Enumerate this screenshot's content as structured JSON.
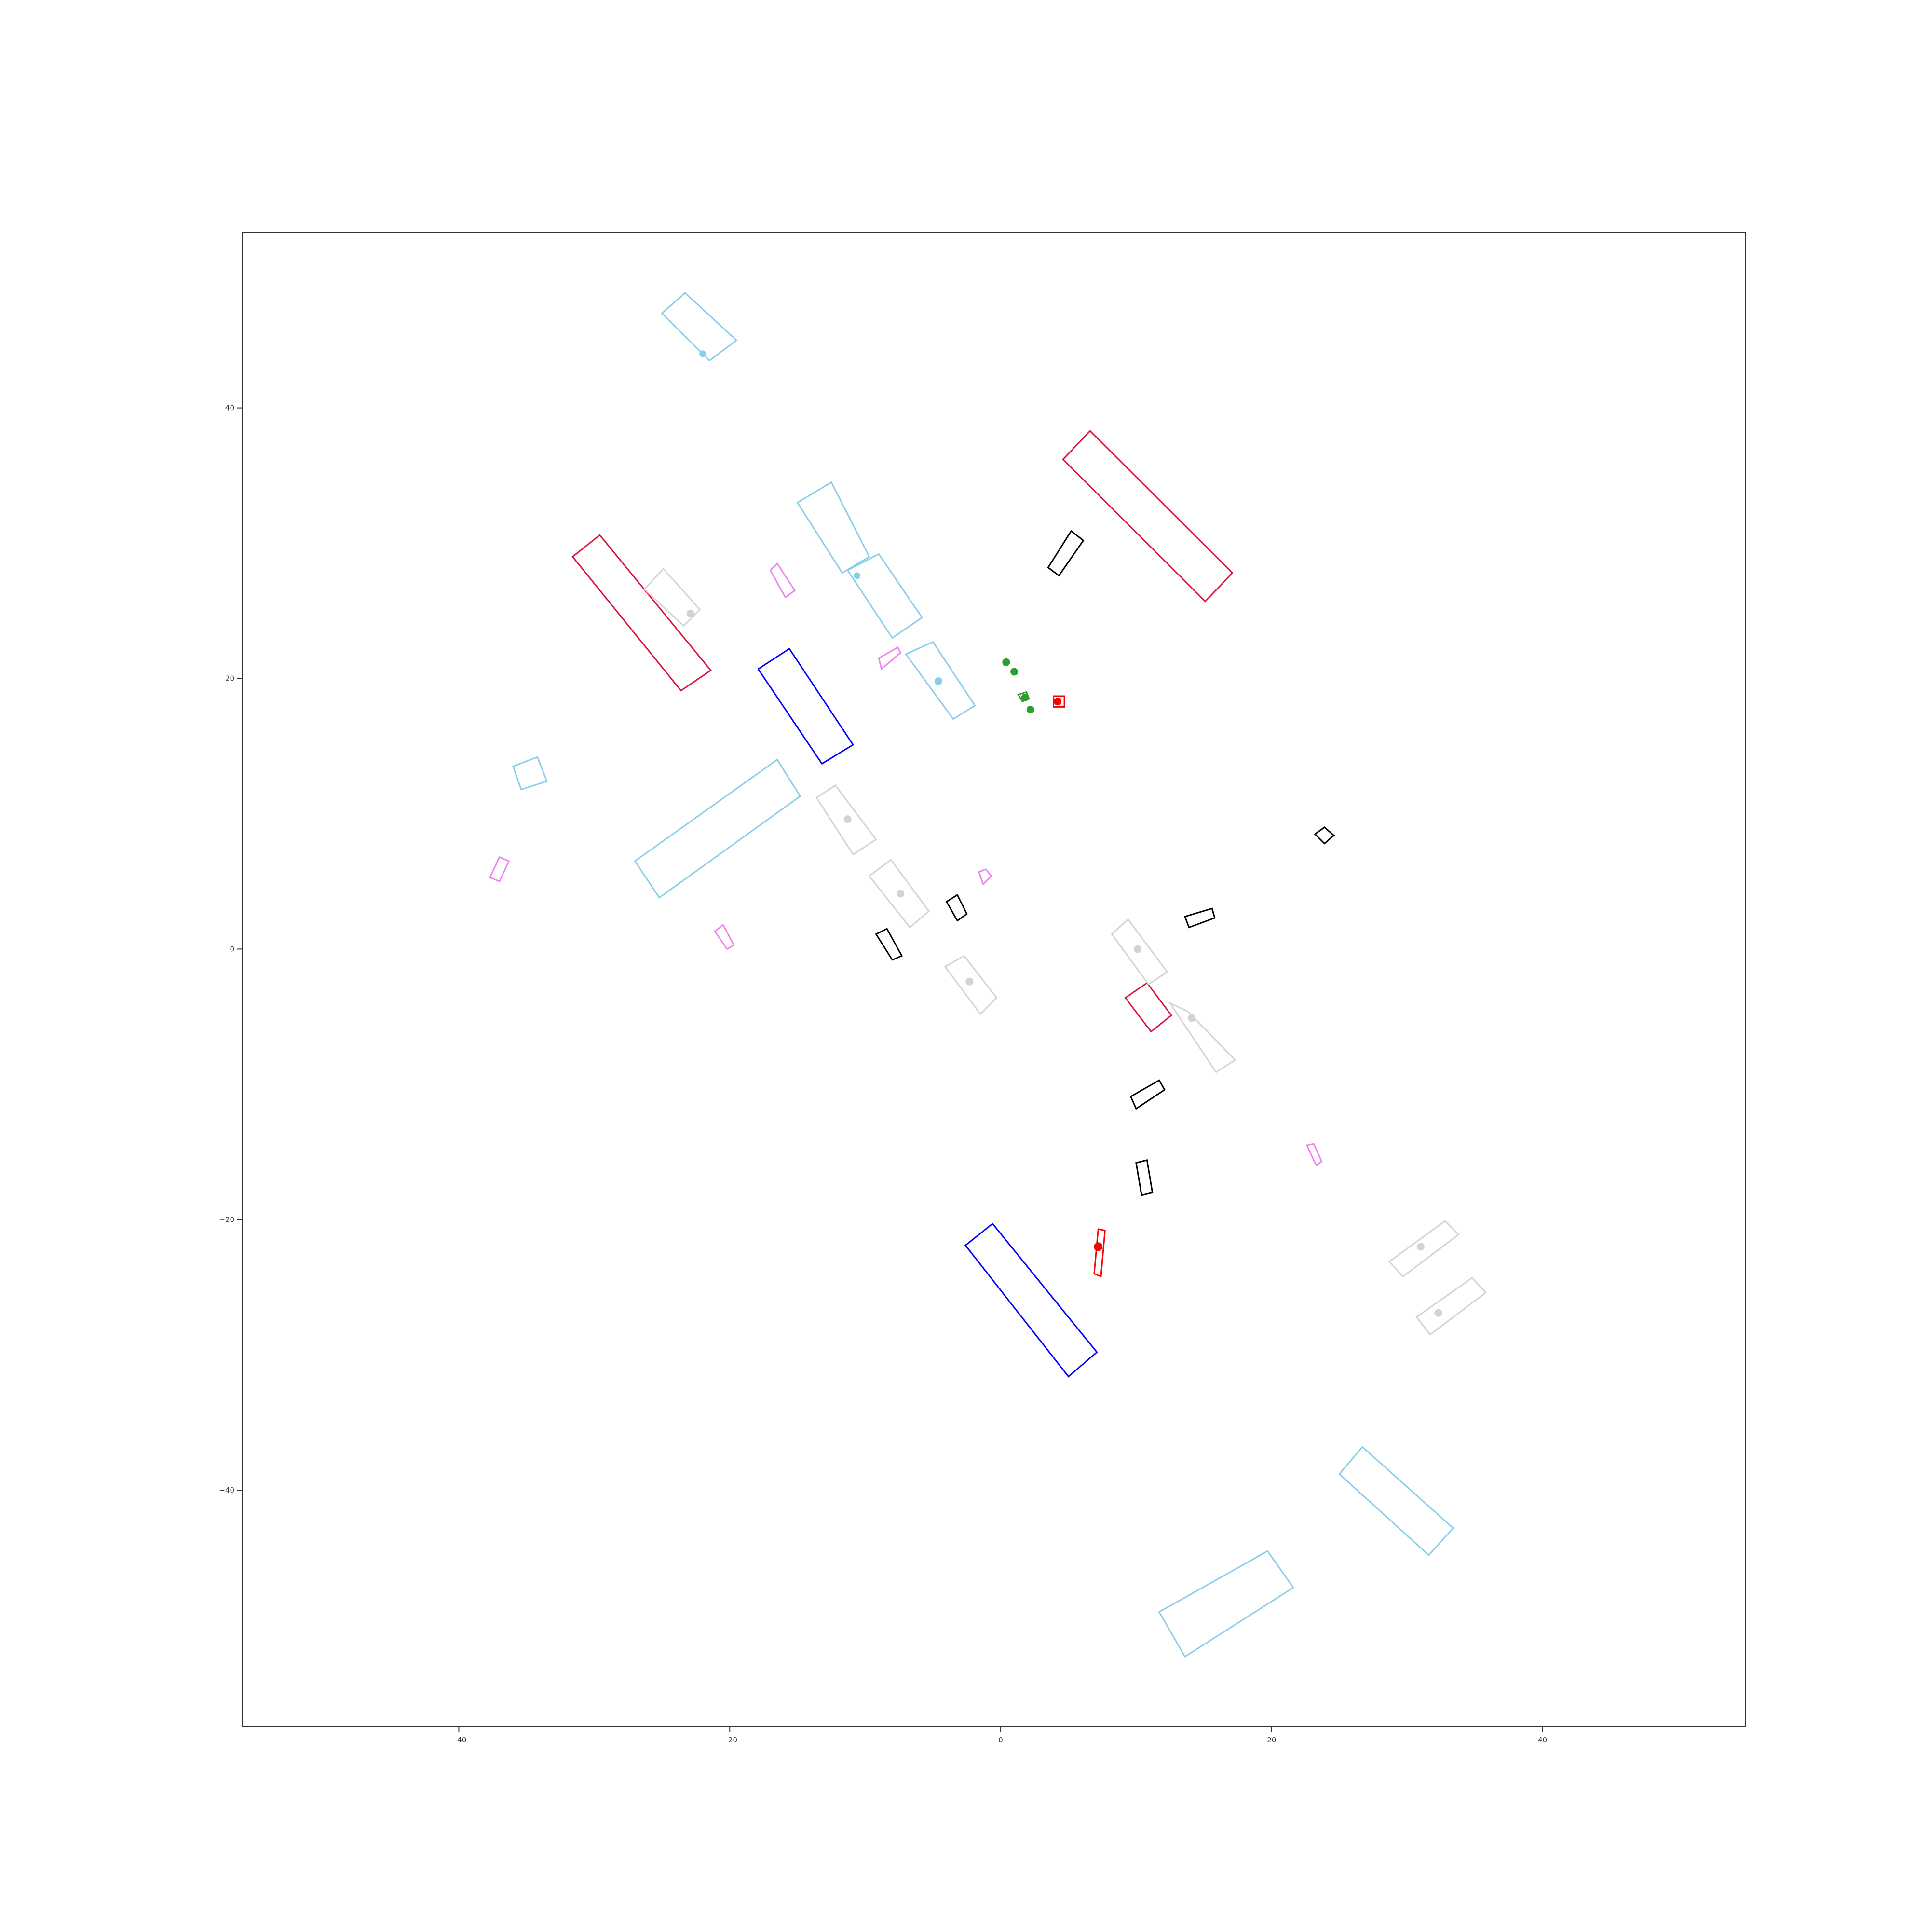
{
  "chart_data": {
    "type": "scatter",
    "title": "",
    "xlabel": "",
    "ylabel": "",
    "xlim": [
      -56,
      55
    ],
    "ylim": [
      -57.5,
      53
    ],
    "grid": false,
    "x_ticks": [
      -40,
      -20,
      0,
      20,
      40
    ],
    "y_ticks": [
      -40,
      -20,
      0,
      20,
      40
    ],
    "x_tick_labels": [
      "−40",
      "−20",
      "0",
      "20",
      "40"
    ],
    "y_tick_labels": [
      "−40",
      "−20",
      "0",
      "20",
      "40"
    ],
    "colors": {
      "skyblue": "#87ceeb",
      "crimson": "#dc143c",
      "blue": "#0000ff",
      "black": "#000000",
      "lightgray": "#d3d3d3",
      "violet": "#ee82ee",
      "green": "#2ca02c",
      "red": "#ff0000"
    },
    "boxes": [
      {
        "color": "skyblue",
        "corners": [
          [
            -25.0,
            47.0
          ],
          [
            -21.5,
            43.5
          ],
          [
            -19.5,
            45.0
          ],
          [
            -23.3,
            48.5
          ]
        ]
      },
      {
        "color": "skyblue",
        "corners": [
          [
            -15.0,
            33.0
          ],
          [
            -12.5,
            34.5
          ],
          [
            -9.7,
            29.0
          ],
          [
            -11.7,
            27.8
          ]
        ]
      },
      {
        "color": "skyblue",
        "corners": [
          [
            -11.3,
            28.0
          ],
          [
            -9.0,
            29.2
          ],
          [
            -5.8,
            24.5
          ],
          [
            -8.0,
            23.0
          ]
        ]
      },
      {
        "color": "skyblue",
        "corners": [
          [
            -7.0,
            21.8
          ],
          [
            -5.0,
            22.7
          ],
          [
            -1.9,
            18.0
          ],
          [
            -3.5,
            17.0
          ]
        ]
      },
      {
        "color": "skyblue",
        "corners": [
          [
            -36.0,
            13.5
          ],
          [
            -34.2,
            14.2
          ],
          [
            -33.5,
            12.4
          ],
          [
            -35.4,
            11.8
          ]
        ]
      },
      {
        "color": "skyblue",
        "corners": [
          [
            -27.0,
            6.5
          ],
          [
            -25.2,
            3.8
          ],
          [
            -14.8,
            11.3
          ],
          [
            -16.5,
            14.0
          ]
        ]
      },
      {
        "color": "skyblue",
        "corners": [
          [
            25.0,
            -38.8
          ],
          [
            26.7,
            -36.8
          ],
          [
            33.4,
            -42.8
          ],
          [
            31.6,
            -44.8
          ]
        ]
      },
      {
        "color": "skyblue",
        "corners": [
          [
            11.7,
            -49.0
          ],
          [
            13.6,
            -52.3
          ],
          [
            21.6,
            -47.2
          ],
          [
            19.7,
            -44.5
          ]
        ]
      },
      {
        "color": "crimson",
        "corners": [
          [
            4.6,
            36.2
          ],
          [
            6.6,
            38.3
          ],
          [
            17.1,
            27.8
          ],
          [
            15.1,
            25.7
          ]
        ]
      },
      {
        "color": "crimson",
        "corners": [
          [
            -31.6,
            29.0
          ],
          [
            -29.6,
            30.6
          ],
          [
            -21.4,
            20.6
          ],
          [
            -23.6,
            19.1
          ]
        ]
      },
      {
        "color": "crimson",
        "corners": [
          [
            9.2,
            -3.6
          ],
          [
            10.8,
            -2.5
          ],
          [
            12.6,
            -4.9
          ],
          [
            11.1,
            -6.1
          ]
        ]
      },
      {
        "color": "blue",
        "corners": [
          [
            -17.9,
            20.7
          ],
          [
            -15.6,
            22.2
          ],
          [
            -10.9,
            15.1
          ],
          [
            -13.2,
            13.7
          ]
        ]
      },
      {
        "color": "blue",
        "corners": [
          [
            -2.6,
            -21.9
          ],
          [
            -0.6,
            -20.3
          ],
          [
            7.1,
            -29.8
          ],
          [
            5.0,
            -31.6
          ]
        ]
      },
      {
        "color": "black",
        "corners": [
          [
            3.5,
            28.2
          ],
          [
            4.3,
            27.6
          ],
          [
            6.1,
            30.2
          ],
          [
            5.2,
            30.9
          ]
        ]
      },
      {
        "color": "black",
        "corners": [
          [
            23.2,
            8.5
          ],
          [
            23.9,
            9.0
          ],
          [
            24.6,
            8.4
          ],
          [
            23.9,
            7.8
          ]
        ]
      },
      {
        "color": "black",
        "corners": [
          [
            13.6,
            2.4
          ],
          [
            15.6,
            3.0
          ],
          [
            15.8,
            2.3
          ],
          [
            13.9,
            1.6
          ]
        ]
      },
      {
        "color": "black",
        "corners": [
          [
            -4.0,
            3.5
          ],
          [
            -3.2,
            4.0
          ],
          [
            -2.5,
            2.6
          ],
          [
            -3.2,
            2.1
          ]
        ]
      },
      {
        "color": "black",
        "corners": [
          [
            -9.2,
            1.1
          ],
          [
            -8.4,
            1.5
          ],
          [
            -7.3,
            -0.5
          ],
          [
            -8.0,
            -0.8
          ]
        ]
      },
      {
        "color": "black",
        "corners": [
          [
            9.6,
            -10.9
          ],
          [
            10.0,
            -11.8
          ],
          [
            12.1,
            -10.4
          ],
          [
            11.7,
            -9.7
          ]
        ]
      },
      {
        "color": "black",
        "corners": [
          [
            10.0,
            -15.8
          ],
          [
            10.8,
            -15.6
          ],
          [
            11.2,
            -18.0
          ],
          [
            10.4,
            -18.2
          ]
        ]
      },
      {
        "color": "lightgray",
        "corners": [
          [
            -26.3,
            26.6
          ],
          [
            -24.9,
            28.1
          ],
          [
            -22.2,
            25.1
          ],
          [
            -23.4,
            23.9
          ]
        ]
      },
      {
        "color": "lightgray",
        "corners": [
          [
            -13.6,
            11.2
          ],
          [
            -12.2,
            12.1
          ],
          [
            -9.2,
            8.1
          ],
          [
            -10.9,
            7.0
          ]
        ]
      },
      {
        "color": "lightgray",
        "corners": [
          [
            -9.7,
            5.4
          ],
          [
            -8.1,
            6.6
          ],
          [
            -5.3,
            2.8
          ],
          [
            -6.7,
            1.6
          ]
        ]
      },
      {
        "color": "lightgray",
        "corners": [
          [
            -4.1,
            -1.3
          ],
          [
            -2.7,
            -0.5
          ],
          [
            -0.3,
            -3.6
          ],
          [
            -1.5,
            -4.8
          ]
        ]
      },
      {
        "color": "lightgray",
        "corners": [
          [
            8.2,
            1.1
          ],
          [
            9.4,
            2.2
          ],
          [
            12.3,
            -1.7
          ],
          [
            10.9,
            -2.6
          ]
        ]
      },
      {
        "color": "lightgray",
        "corners": [
          [
            12.5,
            -4.0
          ],
          [
            13.8,
            -4.6
          ],
          [
            17.3,
            -8.2
          ],
          [
            15.9,
            -9.1
          ]
        ]
      },
      {
        "color": "lightgray",
        "corners": [
          [
            28.7,
            -23.1
          ],
          [
            32.8,
            -20.1
          ],
          [
            33.8,
            -21.1
          ],
          [
            29.7,
            -24.2
          ]
        ]
      },
      {
        "color": "lightgray",
        "corners": [
          [
            30.7,
            -27.2
          ],
          [
            34.8,
            -24.3
          ],
          [
            35.8,
            -25.4
          ],
          [
            31.7,
            -28.5
          ]
        ]
      },
      {
        "color": "violet",
        "corners": [
          [
            -17.0,
            28.0
          ],
          [
            -16.5,
            28.5
          ],
          [
            -15.2,
            26.5
          ],
          [
            -15.9,
            26.0
          ]
        ]
      },
      {
        "color": "violet",
        "corners": [
          [
            -9.0,
            21.5
          ],
          [
            -7.6,
            22.3
          ],
          [
            -7.4,
            21.9
          ],
          [
            -8.8,
            20.7
          ]
        ]
      },
      {
        "color": "violet",
        "corners": [
          [
            -1.6,
            5.7
          ],
          [
            -1.1,
            5.9
          ],
          [
            -0.7,
            5.4
          ],
          [
            -1.3,
            4.8
          ]
        ]
      },
      {
        "color": "violet",
        "corners": [
          [
            -37.7,
            5.3
          ],
          [
            -37.0,
            6.8
          ],
          [
            -36.3,
            6.5
          ],
          [
            -37.0,
            5.0
          ]
        ]
      },
      {
        "color": "violet",
        "corners": [
          [
            -21.1,
            1.3
          ],
          [
            -20.5,
            1.8
          ],
          [
            -19.7,
            0.3
          ],
          [
            -20.2,
            0.0
          ]
        ]
      },
      {
        "color": "violet",
        "corners": [
          [
            22.6,
            -14.5
          ],
          [
            23.1,
            -14.4
          ],
          [
            23.7,
            -15.7
          ],
          [
            23.3,
            -16.0
          ]
        ]
      },
      {
        "color": "red",
        "corners": [
          [
            3.9,
            17.9
          ],
          [
            3.9,
            18.7
          ],
          [
            4.7,
            18.7
          ],
          [
            4.7,
            17.9
          ]
        ]
      },
      {
        "color": "red",
        "corners": [
          [
            6.9,
            -24.0
          ],
          [
            7.2,
            -20.7
          ],
          [
            7.7,
            -20.8
          ],
          [
            7.4,
            -24.2
          ]
        ]
      },
      {
        "color": "green",
        "corners": [
          [
            1.3,
            18.8
          ],
          [
            1.9,
            19.0
          ],
          [
            2.1,
            18.5
          ],
          [
            1.6,
            18.3
          ]
        ]
      }
    ],
    "points": [
      {
        "x": -22.0,
        "y": 44.0,
        "color": "skyblue",
        "size": 7
      },
      {
        "x": -10.6,
        "y": 27.6,
        "color": "skyblue",
        "size": 7
      },
      {
        "x": -4.6,
        "y": 19.8,
        "color": "skyblue",
        "size": 8
      },
      {
        "x": -22.9,
        "y": 24.8,
        "color": "lightgray",
        "size": 8
      },
      {
        "x": -11.3,
        "y": 9.6,
        "color": "lightgray",
        "size": 8
      },
      {
        "x": -7.4,
        "y": 4.1,
        "color": "lightgray",
        "size": 8
      },
      {
        "x": -2.3,
        "y": -2.4,
        "color": "lightgray",
        "size": 8
      },
      {
        "x": 10.1,
        "y": 0.0,
        "color": "lightgray",
        "size": 8
      },
      {
        "x": 14.1,
        "y": -5.1,
        "color": "lightgray",
        "size": 8
      },
      {
        "x": 31.0,
        "y": -22.0,
        "color": "lightgray",
        "size": 8
      },
      {
        "x": 32.3,
        "y": -26.9,
        "color": "lightgray",
        "size": 8
      },
      {
        "x": 0.4,
        "y": 21.2,
        "color": "green",
        "size": 8
      },
      {
        "x": 1.0,
        "y": 20.5,
        "color": "green",
        "size": 8
      },
      {
        "x": 1.8,
        "y": 18.6,
        "color": "green",
        "size": 8
      },
      {
        "x": 2.2,
        "y": 17.7,
        "color": "green",
        "size": 8
      },
      {
        "x": 4.2,
        "y": 18.3,
        "color": "red",
        "size": 8
      },
      {
        "x": 7.2,
        "y": -22.0,
        "color": "red",
        "size": 9
      }
    ]
  }
}
